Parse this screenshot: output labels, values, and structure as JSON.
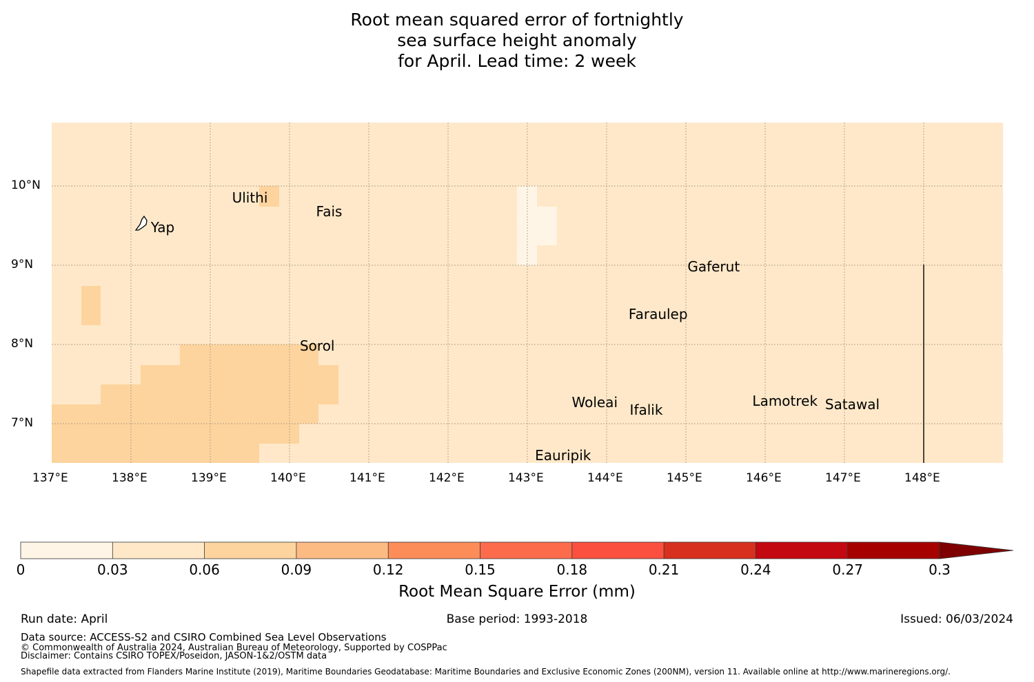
{
  "title": {
    "line1": "Root mean squared error of fortnightly",
    "line2": "sea surface height anomaly",
    "line3": "for April. Lead time: 2 week"
  },
  "map": {
    "lon_labels": [
      "137°E",
      "138°E",
      "139°E",
      "140°E",
      "141°E",
      "142°E",
      "143°E",
      "144°E",
      "145°E",
      "146°E",
      "147°E",
      "148°E"
    ],
    "lat_labels": [
      "10°N",
      "9°N",
      "8°N",
      "7°N"
    ],
    "places": [
      {
        "name": "Ulithi",
        "lon": 139.5,
        "lat": 9.85
      },
      {
        "name": "Fais",
        "lon": 140.5,
        "lat": 9.68
      },
      {
        "name": "Yap",
        "lon": 138.4,
        "lat": 9.48
      },
      {
        "name": "Gaferut",
        "lon": 145.35,
        "lat": 8.98
      },
      {
        "name": "Faraulep",
        "lon": 144.65,
        "lat": 8.38
      },
      {
        "name": "Sorol",
        "lon": 140.35,
        "lat": 7.98
      },
      {
        "name": "Woleai",
        "lon": 143.85,
        "lat": 7.27
      },
      {
        "name": "Ifalik",
        "lon": 144.5,
        "lat": 7.17
      },
      {
        "name": "Lamotrek",
        "lon": 146.25,
        "lat": 7.29
      },
      {
        "name": "Satawal",
        "lon": 147.1,
        "lat": 7.24
      },
      {
        "name": "Eauripik",
        "lon": 143.45,
        "lat": 6.6
      }
    ],
    "colors": {
      "bin_0_03": "#fff5e6",
      "bin_03_06": "#fee8c8",
      "bin_06_09": "#fdd49e",
      "ocean_base": "#fee8c9"
    }
  },
  "colorbar": {
    "label": "Root Mean Square Error (mm)",
    "ticks": [
      "0",
      "0.03",
      "0.06",
      "0.09",
      "0.12",
      "0.15",
      "0.18",
      "0.21",
      "0.24",
      "0.27",
      "0.3"
    ],
    "colors": [
      "#fff5e6",
      "#fee8c8",
      "#fdd49e",
      "#fdbb84",
      "#fc8d59",
      "#fc6c4c",
      "#fb5040",
      "#d7301f",
      "#c40812",
      "#a60000",
      "#7f0000"
    ]
  },
  "footer": {
    "run_date": "Run date: April",
    "base_period": "Base period: 1993-2018",
    "issued": "Issued: 06/03/2024",
    "data_source": "Data source: ACCESS-S2 and CSIRO Combined Sea Level Observations",
    "copyright": "© Commonwealth of Australia 2024, Australian Bureau of Meteorology, Supported by COSPPac",
    "disclaimer": "Disclaimer: Contains CSIRO TOPEX/Poseidon, JASON-1&2/OSTM data",
    "shapefile": "Shapefile data extracted from Flanders Marine Institute (2019), Maritime Boundaries Geodatabase: Maritime Boundaries and Exclusive Economic Zones (200NM), version 11. Available online at http://www.marineregions.org/."
  }
}
